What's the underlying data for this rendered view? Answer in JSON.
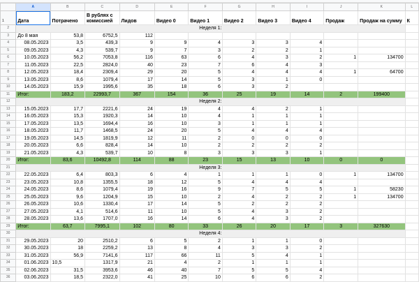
{
  "colors": {
    "total_row": "#93c47d",
    "week_row": "#efefef",
    "selection": "#1a73e8"
  },
  "columns": [
    "A",
    "B",
    "C",
    "D",
    "E",
    "F",
    "G",
    "H",
    "I",
    "J",
    "K",
    "L"
  ],
  "headers": [
    "Дата",
    "Потрачено",
    "В рублях с комиссией",
    "Лидов",
    "Видео 0",
    "Видео 1",
    "Видео 2",
    "Видео 3",
    "Видео 4",
    "Продаж",
    "Продаж на сумму",
    "К"
  ],
  "rows": [
    {
      "n": 2,
      "type": "week",
      "label": "Неделя 1:"
    },
    {
      "n": 3,
      "type": "data",
      "cells": [
        "До 8 мая",
        "53,8",
        "6752,5",
        "112",
        "",
        "",
        "",
        "",
        "",
        "",
        ""
      ]
    },
    {
      "n": 4,
      "type": "data",
      "cells": [
        "08.05.2023",
        "3,5",
        "439,3",
        "9",
        "9",
        "4",
        "3",
        "3",
        "4",
        "",
        ""
      ]
    },
    {
      "n": 5,
      "type": "data",
      "cells": [
        "09.05.2023",
        "4,3",
        "539,7",
        "9",
        "7",
        "3",
        "2",
        "2",
        "1",
        "",
        ""
      ]
    },
    {
      "n": 6,
      "type": "data",
      "cells": [
        "10.05.2023",
        "56,2",
        "7053,8",
        "116",
        "63",
        "6",
        "4",
        "3",
        "2",
        "1",
        "134700"
      ]
    },
    {
      "n": 7,
      "type": "data",
      "cells": [
        "11.05.2023",
        "22,5",
        "2824,0",
        "40",
        "23",
        "7",
        "6",
        "4",
        "3",
        "",
        ""
      ]
    },
    {
      "n": 8,
      "type": "data",
      "cells": [
        "12.05.2023",
        "18,4",
        "2309,4",
        "29",
        "20",
        "5",
        "4",
        "4",
        "4",
        "1",
        "64700"
      ]
    },
    {
      "n": 9,
      "type": "data",
      "cells": [
        "13.05.2023",
        "8,6",
        "1079,4",
        "17",
        "14",
        "5",
        "3",
        "1",
        "0",
        "",
        ""
      ]
    },
    {
      "n": 10,
      "type": "data",
      "cells": [
        "14.05.2023",
        "15,9",
        "1995,6",
        "35",
        "18",
        "6",
        "3",
        "2",
        "",
        "",
        ""
      ]
    },
    {
      "n": 11,
      "type": "total",
      "cells": [
        "Итог:",
        "183,2",
        "22993,7",
        "367",
        "154",
        "36",
        "25",
        "19",
        "14",
        "2",
        "199400"
      ]
    },
    {
      "n": 12,
      "type": "week",
      "label": "Неделя 2:"
    },
    {
      "n": 13,
      "type": "data",
      "cells": [
        "15.05.2023",
        "17,7",
        "2221,6",
        "24",
        "19",
        "4",
        "4",
        "2",
        "1",
        "",
        ""
      ]
    },
    {
      "n": 14,
      "type": "data",
      "cells": [
        "16.05.2023",
        "15,3",
        "1920,3",
        "14",
        "10",
        "4",
        "1",
        "1",
        "1",
        "",
        ""
      ]
    },
    {
      "n": 15,
      "type": "data",
      "cells": [
        "17.05.2023",
        "13,5",
        "1694,4",
        "16",
        "10",
        "3",
        "1",
        "1",
        "1",
        "",
        ""
      ]
    },
    {
      "n": 16,
      "type": "data",
      "cells": [
        "18.05.2023",
        "11,7",
        "1468,5",
        "24",
        "20",
        "5",
        "4",
        "4",
        "4",
        "",
        ""
      ]
    },
    {
      "n": 17,
      "type": "data",
      "cells": [
        "19.05.2023",
        "14,5",
        "1819,9",
        "12",
        "11",
        "2",
        "0",
        "0",
        "0",
        "",
        ""
      ]
    },
    {
      "n": 18,
      "type": "data",
      "cells": [
        "20.05.2023",
        "6,6",
        "828,4",
        "14",
        "10",
        "2",
        "2",
        "2",
        "2",
        "",
        ""
      ]
    },
    {
      "n": 19,
      "type": "data",
      "cells": [
        "21.05.2023",
        "4,3",
        "539,7",
        "10",
        "8",
        "3",
        "3",
        "3",
        "1",
        "",
        ""
      ]
    },
    {
      "n": 20,
      "type": "total",
      "cells": [
        "Итог:",
        "83,6",
        "10492,8",
        "114",
        "88",
        "23",
        "15",
        "13",
        "10",
        "0",
        "0"
      ]
    },
    {
      "n": 21,
      "type": "week",
      "label": "Неделя 3:"
    },
    {
      "n": 22,
      "type": "data",
      "cells": [
        "22.05.2023",
        "6,4",
        "803,3",
        "6",
        "4",
        "1",
        "1",
        "1",
        "0",
        "1",
        "134700"
      ]
    },
    {
      "n": 23,
      "type": "data",
      "cells": [
        "23.05.2023",
        "10,8",
        "1355,5",
        "18",
        "12",
        "5",
        "4",
        "4",
        "4",
        "",
        ""
      ]
    },
    {
      "n": 24,
      "type": "data",
      "cells": [
        "24.05.2023",
        "8,6",
        "1079,4",
        "19",
        "16",
        "9",
        "7",
        "5",
        "5",
        "1",
        "58230"
      ]
    },
    {
      "n": 25,
      "type": "data",
      "cells": [
        "25.05.2023",
        "9,6",
        "1204,9",
        "15",
        "10",
        "2",
        "4",
        "2",
        "2",
        "1",
        "134700"
      ]
    },
    {
      "n": 26,
      "type": "data",
      "cells": [
        "26.05.2023",
        "10,6",
        "1330,4",
        "17",
        "14",
        "5",
        "2",
        "2",
        "2",
        "",
        ""
      ]
    },
    {
      "n": 27,
      "type": "data",
      "cells": [
        "27.05.2023",
        "4,1",
        "514,6",
        "11",
        "10",
        "5",
        "4",
        "3",
        "2",
        "",
        ""
      ]
    },
    {
      "n": 28,
      "type": "data",
      "cells": [
        "28.05.2023",
        "13,6",
        "1707,0",
        "16",
        "14",
        "6",
        "4",
        "3",
        "2",
        "",
        ""
      ]
    },
    {
      "n": 29,
      "type": "total",
      "cells": [
        "Итог:",
        "63,7",
        "7995,1",
        "102",
        "80",
        "33",
        "26",
        "20",
        "17",
        "3",
        "327630"
      ]
    },
    {
      "n": 30,
      "type": "week",
      "label": "Неделя 4:"
    },
    {
      "n": 31,
      "type": "data",
      "cells": [
        "29.05.2023",
        "20",
        "2510,2",
        "6",
        "5",
        "2",
        "1",
        "1",
        "0",
        "",
        ""
      ]
    },
    {
      "n": 32,
      "type": "data",
      "cells": [
        "30.05.2023",
        "18",
        "2259,2",
        "13",
        "8",
        "4",
        "3",
        "3",
        "2",
        "",
        ""
      ]
    },
    {
      "n": 33,
      "type": "data",
      "cells": [
        "31.05.2023",
        "56,9",
        "7141,6",
        "117",
        "66",
        "11",
        "5",
        "4",
        "1",
        "",
        ""
      ]
    },
    {
      "n": 34,
      "type": "data",
      "cells": [
        "01.06.2023",
        "10,5",
        "1317,9",
        "21",
        "4",
        "2",
        "1",
        "1",
        "1",
        "",
        ""
      ]
    },
    {
      "n": 35,
      "type": "data",
      "cells": [
        "02.06.2023",
        "31,5",
        "3953,6",
        "46",
        "40",
        "7",
        "5",
        "5",
        "4",
        "",
        ""
      ]
    },
    {
      "n": 36,
      "type": "data",
      "cells": [
        "03.06.2023",
        "18,5",
        "2322,0",
        "41",
        "25",
        "10",
        "6",
        "6",
        "2",
        "",
        ""
      ]
    }
  ]
}
